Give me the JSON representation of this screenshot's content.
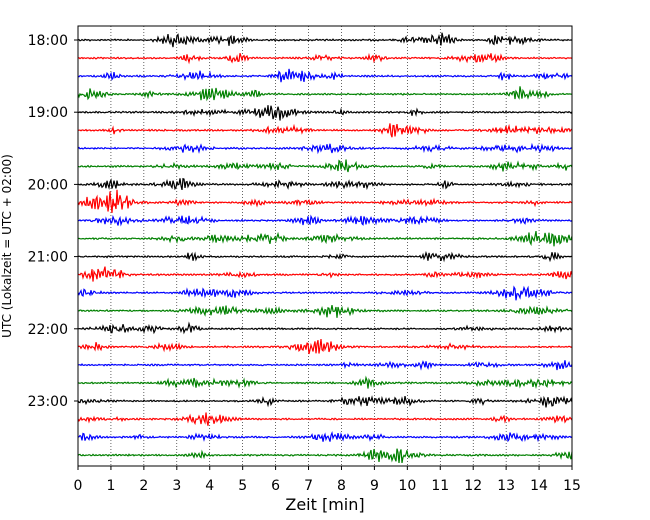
{
  "chart_data": {
    "type": "line",
    "subtype": "seismogram-helicorder",
    "xlabel": "Zeit  [min]",
    "ylabel": "UTC (Lokalzeit = UTC + 02:00)",
    "xlim": [
      0,
      15
    ],
    "x_ticks": [
      "0",
      "1",
      "2",
      "3",
      "4",
      "5",
      "6",
      "7",
      "8",
      "9",
      "10",
      "11",
      "12",
      "13",
      "14",
      "15"
    ],
    "y_tick_labels": [
      "18:00",
      "19:00",
      "20:00",
      "21:00",
      "22:00",
      "23:00"
    ],
    "grid": "vertical dotted lines at each minute",
    "trace_minutes": 15,
    "color_cycle": [
      "#000000",
      "#ff0000",
      "#0000ff",
      "#008000"
    ],
    "traces": [
      {
        "start": "18:00"
      },
      {
        "start": "18:15"
      },
      {
        "start": "18:30"
      },
      {
        "start": "18:45"
      },
      {
        "start": "19:00"
      },
      {
        "start": "19:15"
      },
      {
        "start": "19:30"
      },
      {
        "start": "19:45"
      },
      {
        "start": "20:00"
      },
      {
        "start": "20:15"
      },
      {
        "start": "20:30"
      },
      {
        "start": "20:45"
      },
      {
        "start": "21:00"
      },
      {
        "start": "21:15"
      },
      {
        "start": "21:30"
      },
      {
        "start": "21:45"
      },
      {
        "start": "22:00"
      },
      {
        "start": "22:15"
      },
      {
        "start": "22:30"
      },
      {
        "start": "22:45"
      },
      {
        "start": "23:00"
      },
      {
        "start": "23:15"
      },
      {
        "start": "23:30"
      },
      {
        "start": "23:45"
      }
    ]
  }
}
